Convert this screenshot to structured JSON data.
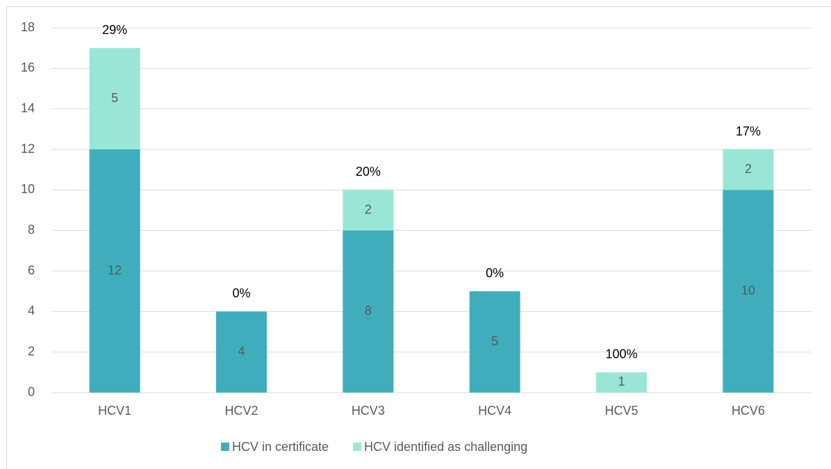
{
  "chart_data": {
    "type": "stacked_bar",
    "categories": [
      "HCV1",
      "HCV2",
      "HCV3",
      "HCV4",
      "HCV5",
      "HCV6"
    ],
    "series": [
      {
        "name": "HCV in certificate",
        "color": "#40adbd",
        "values": [
          12,
          4,
          8,
          5,
          0,
          10
        ]
      },
      {
        "name": "HCV identified as challenging",
        "color": "#9ae6d6",
        "values": [
          5,
          0,
          2,
          0,
          1,
          2
        ]
      }
    ],
    "annotations": [
      "29%",
      "0%",
      "20%",
      "0%",
      "100%",
      "17%"
    ],
    "ylim": [
      0,
      18
    ],
    "yticks": [
      0,
      2,
      4,
      6,
      8,
      10,
      12,
      14,
      16,
      18
    ],
    "grid": true,
    "legend": "bottom"
  }
}
